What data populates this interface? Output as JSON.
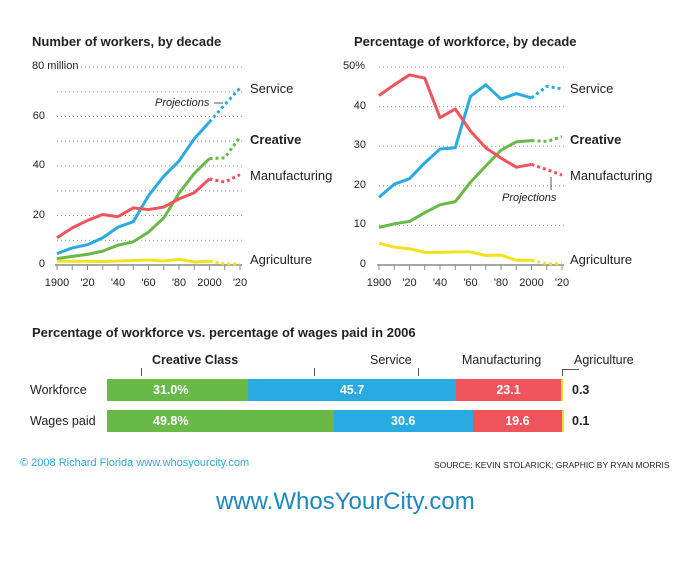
{
  "colors": {
    "Service": "#29aae1",
    "Creative": "#68b947",
    "Manufacturing": "#ef535c",
    "Agriculture": "#f2e21b"
  },
  "chart_data": [
    {
      "type": "line",
      "title": "Number of workers, by decade",
      "x": [
        1900,
        1910,
        1920,
        1930,
        1940,
        1950,
        1960,
        1970,
        1980,
        1990,
        2000,
        2010,
        2020
      ],
      "x_tick_labels": [
        "1900",
        "'20",
        "'40",
        "'60",
        "'80",
        "2000",
        "'20"
      ],
      "y_tick_labels": [
        "0",
        "20",
        "40",
        "60",
        "80 million"
      ],
      "ylim": [
        0,
        80
      ],
      "grid": true,
      "projection_from": 2000,
      "annotation": "Projections",
      "series": [
        {
          "name": "Service",
          "values": [
            4.6,
            6.9,
            8.2,
            11,
            15.3,
            17.5,
            28,
            35.9,
            42,
            51,
            57.8,
            64.8,
            71.5
          ]
        },
        {
          "name": "Creative",
          "values": [
            2.6,
            3.5,
            4.3,
            5.6,
            8,
            9.4,
            13.3,
            19,
            29,
            37,
            43,
            43.3,
            51.7
          ]
        },
        {
          "name": "Manufacturing",
          "values": [
            11,
            15,
            18,
            20.4,
            19.5,
            23.1,
            22.4,
            23.4,
            26.7,
            29.2,
            34.8,
            33.5,
            36.5
          ]
        },
        {
          "name": "Agriculture",
          "values": [
            1.6,
            1.5,
            1.5,
            1.4,
            1.6,
            1.8,
            2.0,
            1.6,
            2.3,
            1.2,
            1.5,
            0.5,
            0.4
          ]
        }
      ]
    },
    {
      "type": "line",
      "title": "Percentage of workforce, by decade",
      "x": [
        1900,
        1910,
        1920,
        1930,
        1940,
        1950,
        1960,
        1970,
        1980,
        1990,
        2000,
        2010,
        2020
      ],
      "x_tick_labels": [
        "1900",
        "'20",
        "'40",
        "'60",
        "'80",
        "2000",
        "'20"
      ],
      "y_tick_labels": [
        "0",
        "10",
        "20",
        "30",
        "40",
        "50%"
      ],
      "ylim": [
        0,
        50
      ],
      "grid": true,
      "projection_from": 2000,
      "annotation": "Projections",
      "series": [
        {
          "name": "Service",
          "values": [
            17.1,
            20.4,
            21.8,
            25.8,
            29.3,
            29.6,
            42.6,
            45.5,
            41.9,
            43.3,
            42.2,
            45.1,
            44.5
          ]
        },
        {
          "name": "Creative",
          "values": [
            9.5,
            10.4,
            11,
            13.2,
            15.2,
            16,
            20.9,
            25,
            29,
            31.1,
            31.4,
            31.2,
            32.4
          ]
        },
        {
          "name": "Manufacturing",
          "values": [
            42.8,
            45.5,
            48,
            47.2,
            37.2,
            39.4,
            33.8,
            29.6,
            27,
            24.7,
            25.4,
            24.1,
            22.7
          ]
        },
        {
          "name": "Agriculture",
          "values": [
            5.5,
            4.5,
            4.1,
            3.2,
            3.2,
            3.3,
            3.3,
            2.4,
            2.5,
            1.2,
            1.2,
            0.3,
            0.3
          ]
        }
      ]
    },
    {
      "type": "bar",
      "stacked": true,
      "orientation": "horizontal",
      "title": "Percentage of workforce vs. percentage of wages paid in 2006",
      "categories": [
        "Workforce",
        "Wages paid"
      ],
      "series": [
        {
          "name": "Creative Class",
          "values": [
            31.0,
            49.8
          ],
          "labels": [
            "31.0%",
            "49.8%"
          ]
        },
        {
          "name": "Service",
          "values": [
            45.7,
            30.6
          ],
          "labels": [
            "45.7",
            "30.6"
          ]
        },
        {
          "name": "Manufacturing",
          "values": [
            23.1,
            19.6
          ],
          "labels": [
            "23.1",
            "19.6"
          ]
        },
        {
          "name": "Agriculture",
          "values": [
            0.3,
            0.1
          ],
          "labels": [
            "0.3",
            "0.1"
          ]
        }
      ]
    }
  ],
  "footer": {
    "copyright": "© 2008 Richard Florida www.whosyourcity.com",
    "source": "SOURCE: KEVIN STOLARICK; GRAPHIC BY RYAN MORRIS",
    "site": "www.WhosYourCity.com"
  }
}
